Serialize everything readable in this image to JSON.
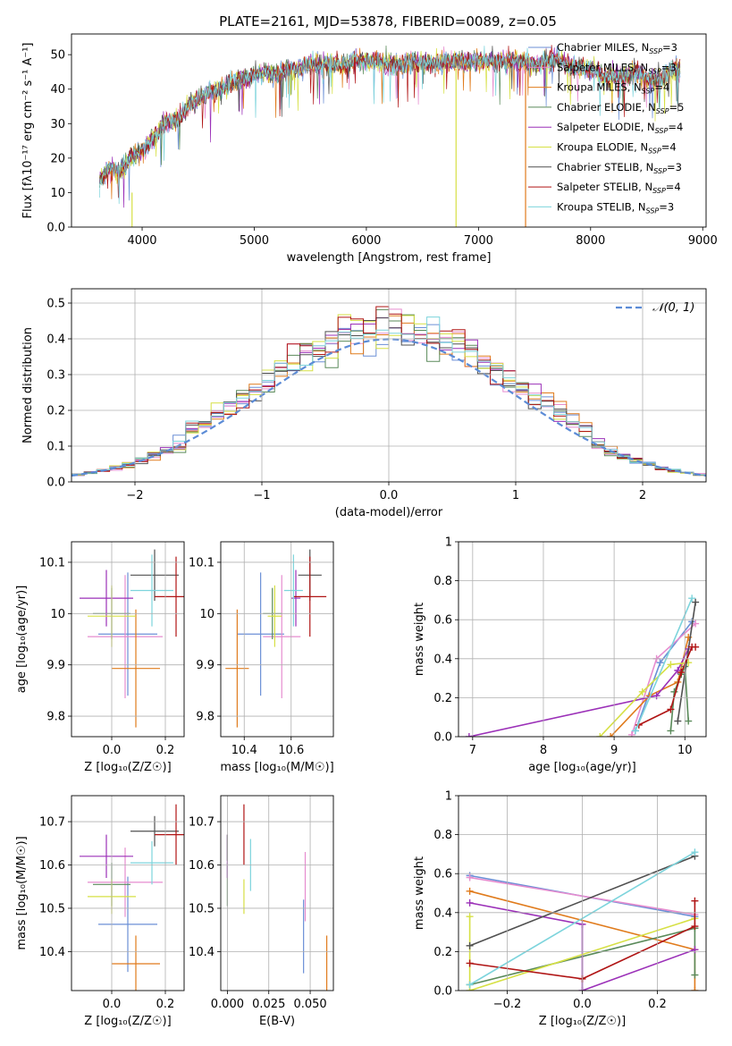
{
  "figure_title": "PLATE=2161, MJD=53878, FIBERID=0089, z=0.05",
  "colors": {
    "Chabrier MILES": "#6b8fd6",
    "Salpeter MILES": "#e68ccf",
    "Kroupa MILES": "#e07b1c",
    "Chabrier ELODIE": "#5a8a5a",
    "Salpeter ELODIE": "#9b30b8",
    "Kroupa ELODIE": "#d6e044",
    "Chabrier STELIB": "#505050",
    "Salpeter STELIB": "#b01515",
    "Kroupa STELIB": "#7dd4dc",
    "normal": "#5b8bd6"
  },
  "chart_data": [
    {
      "type": "line",
      "panel": "spectrum",
      "xlabel": "wavelength [Angstrom, rest frame]",
      "ylabel": "Flux [fλ10⁻¹⁷ erg cm⁻² s⁻¹ A⁻¹]",
      "xlim": [
        3370,
        9030
      ],
      "ylim": [
        0,
        56
      ],
      "xticks": [
        4000,
        5000,
        6000,
        7000,
        8000,
        9000
      ],
      "yticks": [
        0,
        10,
        20,
        30,
        40,
        50
      ],
      "grid": false,
      "legend_position": "top-right",
      "legend": [
        {
          "label": "Chabrier MILES, N",
          "sub": "SSP",
          "value": "=3"
        },
        {
          "label": "Salpeter MILES, N",
          "sub": "SSP",
          "value": "=3"
        },
        {
          "label": "Kroupa MILES, N",
          "sub": "SSP",
          "value": "=4"
        },
        {
          "label": "Chabrier ELODIE, N",
          "sub": "SSP",
          "value": "=5"
        },
        {
          "label": "Salpeter ELODIE, N",
          "sub": "SSP",
          "value": "=4"
        },
        {
          "label": "Kroupa ELODIE, N",
          "sub": "SSP",
          "value": "=4"
        },
        {
          "label": "Chabrier STELIB, N",
          "sub": "SSP",
          "value": "=3"
        },
        {
          "label": "Salpeter STELIB, N",
          "sub": "SSP",
          "value": "=4"
        },
        {
          "label": "Kroupa STELIB, N",
          "sub": "SSP",
          "value": "=3"
        }
      ],
      "x": [
        3620,
        3700,
        3800,
        3900,
        4000,
        4100,
        4200,
        4300,
        4400,
        4500,
        4600,
        4700,
        4800,
        4900,
        5000,
        5100,
        5200,
        5300,
        5400,
        5500,
        5600,
        5700,
        5800,
        5900,
        6000,
        6100,
        6200,
        6300,
        6400,
        6500,
        6600,
        6700,
        6800,
        6900,
        7000,
        7100,
        7200,
        7300,
        7400,
        7500,
        7600,
        7700,
        7800,
        7900,
        8000,
        8100,
        8200,
        8300,
        8400,
        8500,
        8600,
        8700,
        8800
      ],
      "y": [
        13,
        17,
        16,
        20,
        22,
        26,
        30,
        31,
        35,
        37,
        39,
        40,
        42,
        43,
        44,
        45,
        44,
        46,
        46,
        47,
        47,
        47,
        47,
        48,
        48,
        48,
        47,
        47,
        48,
        48,
        47,
        48,
        48,
        48,
        48,
        48,
        48,
        48,
        48,
        47,
        48,
        49,
        47,
        46,
        46,
        44,
        43,
        44,
        45,
        43,
        43,
        45,
        46
      ],
      "dropouts": [
        {
          "x": 3910,
          "y_low": 0,
          "y_high": 10
        },
        {
          "x": 6800,
          "y_low": 0,
          "y_high": 46
        },
        {
          "x": 7420,
          "y_low": 0,
          "y_high": 47
        }
      ]
    },
    {
      "type": "histogram",
      "panel": "residuals",
      "xlabel": "(data-model)/error",
      "ylabel": "Normed distribution",
      "xlim": [
        -2.5,
        2.5
      ],
      "ylim": [
        0,
        0.54
      ],
      "xticks": [
        -2,
        -1,
        0,
        1,
        2
      ],
      "yticks": [
        0,
        0.1,
        0.2,
        0.3,
        0.4,
        0.5
      ],
      "grid": true,
      "legend_position": "top-right",
      "legend": [
        {
          "label": "𝒩(0, 1)"
        }
      ],
      "bin_edges_start": -2.5,
      "bin_width": 0.1
    },
    {
      "type": "errorbar",
      "panel": "age-vs-Z",
      "xlabel": "Z [log₁₀(Z/Z☉)]",
      "ylabel": "age  [log₁₀(age/yr)]",
      "xlim": [
        -0.15,
        0.27
      ],
      "ylim": [
        9.76,
        10.14
      ],
      "xticks": [
        0.0,
        0.2
      ],
      "yticks": [
        9.8,
        9.9,
        10.0,
        10.1
      ],
      "grid": true,
      "points": [
        {
          "series": "Chabrier MILES",
          "x": 0.06,
          "xerr": 0.11,
          "y": 9.96,
          "yerr": 0.12
        },
        {
          "series": "Salpeter MILES",
          "x": 0.05,
          "xerr": 0.14,
          "y": 9.955,
          "yerr": 0.12
        },
        {
          "series": "Kroupa MILES",
          "x": 0.09,
          "xerr": 0.09,
          "y": 9.893,
          "yerr": 0.115
        },
        {
          "series": "Chabrier ELODIE",
          "x": 0.0,
          "xerr": 0.07,
          "y": 10.0,
          "yerr": 0.05
        },
        {
          "series": "Salpeter ELODIE",
          "x": -0.02,
          "xerr": 0.1,
          "y": 10.03,
          "yerr": 0.055
        },
        {
          "series": "Kroupa ELODIE",
          "x": 0.0,
          "xerr": 0.09,
          "y": 9.995,
          "yerr": 0.06
        },
        {
          "series": "Chabrier STELIB",
          "x": 0.16,
          "xerr": 0.09,
          "y": 10.075,
          "yerr": 0.05
        },
        {
          "series": "Salpeter STELIB",
          "x": 0.24,
          "xerr": 0.08,
          "y": 10.033,
          "yerr": 0.078
        },
        {
          "series": "Kroupa STELIB",
          "x": 0.15,
          "xerr": 0.08,
          "y": 10.045,
          "yerr": 0.07
        }
      ]
    },
    {
      "type": "errorbar",
      "panel": "age-vs-mass",
      "xlabel": "mass [log₁₀(M/M☉)]",
      "ylabel": "",
      "xlim": [
        10.3,
        10.78
      ],
      "ylim": [
        9.76,
        10.14
      ],
      "xticks": [
        10.4,
        10.6
      ],
      "yticks": [
        9.8,
        9.9,
        10.0,
        10.1
      ],
      "grid": true,
      "points": [
        {
          "series": "Chabrier MILES",
          "x": 10.47,
          "xerr": 0.1,
          "y": 9.96,
          "yerr": 0.12
        },
        {
          "series": "Salpeter MILES",
          "x": 10.56,
          "xerr": 0.08,
          "y": 9.955,
          "yerr": 0.12
        },
        {
          "series": "Kroupa MILES",
          "x": 10.37,
          "xerr": 0.05,
          "y": 9.893,
          "yerr": 0.115
        },
        {
          "series": "Chabrier ELODIE",
          "x": 10.52,
          "xerr": 0.04,
          "y": 10.0,
          "yerr": 0.05
        },
        {
          "series": "Salpeter ELODIE",
          "x": 10.62,
          "xerr": 0.02,
          "y": 10.03,
          "yerr": 0.055
        },
        {
          "series": "Kroupa ELODIE",
          "x": 10.53,
          "xerr": 0.03,
          "y": 9.995,
          "yerr": 0.06
        },
        {
          "series": "Chabrier STELIB",
          "x": 10.68,
          "xerr": 0.05,
          "y": 10.075,
          "yerr": 0.05
        },
        {
          "series": "Salpeter STELIB",
          "x": 10.68,
          "xerr": 0.07,
          "y": 10.033,
          "yerr": 0.078
        },
        {
          "series": "Kroupa STELIB",
          "x": 10.61,
          "xerr": 0.04,
          "y": 10.045,
          "yerr": 0.07
        }
      ]
    },
    {
      "type": "line",
      "panel": "mass-weight-vs-age",
      "xlabel": "age  [log₁₀(age/yr)]",
      "ylabel": "mass weight",
      "xlim": [
        6.8,
        10.3
      ],
      "ylim": [
        0,
        1.0
      ],
      "xticks": [
        7,
        8,
        9,
        10
      ],
      "yticks": [
        0.0,
        0.2,
        0.4,
        0.6,
        0.8,
        1.0
      ],
      "grid": true,
      "series": [
        {
          "name": "Chabrier MILES",
          "x": [
            9.3,
            9.65,
            10.1
          ],
          "y": [
            0.03,
            0.38,
            0.59
          ]
        },
        {
          "name": "Salpeter MILES",
          "x": [
            9.25,
            9.6,
            10.15
          ],
          "y": [
            0.01,
            0.4,
            0.58
          ]
        },
        {
          "name": "Kroupa MILES",
          "x": [
            8.95,
            9.5,
            9.9,
            10.05
          ],
          "y": [
            0.0,
            0.21,
            0.28,
            0.51
          ]
        },
        {
          "name": "Chabrier ELODIE",
          "x": [
            9.8,
            9.85,
            9.95,
            10.0,
            10.05
          ],
          "y": [
            0.03,
            0.23,
            0.32,
            0.36,
            0.08
          ]
        },
        {
          "name": "Salpeter ELODIE",
          "x": [
            6.95,
            9.6,
            9.9,
            10.05
          ],
          "y": [
            0.0,
            0.21,
            0.34,
            0.45
          ]
        },
        {
          "name": "Kroupa ELODIE",
          "x": [
            8.8,
            9.4,
            9.8,
            10.05
          ],
          "y": [
            0.0,
            0.23,
            0.37,
            0.38
          ]
        },
        {
          "name": "Chabrier STELIB",
          "x": [
            9.9,
            10.15
          ],
          "y": [
            0.08,
            0.69
          ]
        },
        {
          "name": "Salpeter STELIB",
          "x": [
            9.35,
            9.8,
            9.95,
            10.1,
            10.15
          ],
          "y": [
            0.06,
            0.14,
            0.33,
            0.46,
            0.46
          ]
        },
        {
          "name": "Kroupa STELIB",
          "x": [
            9.3,
            10.1
          ],
          "y": [
            0.03,
            0.71
          ]
        }
      ]
    },
    {
      "type": "errorbar",
      "panel": "mass-vs-Z",
      "xlabel": "Z [log₁₀(Z/Z☉)]",
      "ylabel": "mass [log₁₀(M/M☉)]",
      "xlim": [
        -0.15,
        0.27
      ],
      "ylim": [
        10.31,
        10.76
      ],
      "xticks": [
        0.0,
        0.2
      ],
      "yticks": [
        10.4,
        10.5,
        10.6,
        10.7
      ],
      "grid": true,
      "points": [
        {
          "series": "Chabrier MILES",
          "x": 0.06,
          "xerr": 0.11,
          "y": 10.463,
          "yerr": 0.11
        },
        {
          "series": "Salpeter MILES",
          "x": 0.05,
          "xerr": 0.14,
          "y": 10.56,
          "yerr": 0.08
        },
        {
          "series": "Kroupa MILES",
          "x": 0.09,
          "xerr": 0.09,
          "y": 10.372,
          "yerr": 0.065
        },
        {
          "series": "Chabrier ELODIE",
          "x": 0.0,
          "xerr": 0.07,
          "y": 10.555,
          "yerr": 0.05
        },
        {
          "series": "Salpeter ELODIE",
          "x": -0.02,
          "xerr": 0.1,
          "y": 10.62,
          "yerr": 0.05
        },
        {
          "series": "Kroupa ELODIE",
          "x": 0.0,
          "xerr": 0.09,
          "y": 10.527,
          "yerr": 0.04
        },
        {
          "series": "Chabrier STELIB",
          "x": 0.16,
          "xerr": 0.09,
          "y": 10.678,
          "yerr": 0.035
        },
        {
          "series": "Salpeter STELIB",
          "x": 0.24,
          "xerr": 0.08,
          "y": 10.67,
          "yerr": 0.07
        },
        {
          "series": "Kroupa STELIB",
          "x": 0.15,
          "xerr": 0.08,
          "y": 10.605,
          "yerr": 0.05
        }
      ]
    },
    {
      "type": "errorbar",
      "panel": "mass-vs-EBV",
      "xlabel": "E(B-V)",
      "ylabel": "",
      "xlim": [
        -0.004,
        0.064
      ],
      "ylim": [
        10.31,
        10.76
      ],
      "xticks": [
        0.0,
        0.025,
        0.05
      ],
      "tick_labels": [
        "0.000",
        "0.025",
        "0.050"
      ],
      "yticks": [
        10.4,
        10.5,
        10.6,
        10.7
      ],
      "grid": true,
      "points": [
        {
          "series": "Chabrier MILES",
          "x": 0.046,
          "y": 10.435,
          "yerr": 0.085
        },
        {
          "series": "Salpeter MILES",
          "x": 0.047,
          "y": 10.55,
          "yerr": 0.08
        },
        {
          "series": "Kroupa MILES",
          "x": 0.06,
          "y": 10.372,
          "yerr": 0.065
        },
        {
          "series": "Chabrier ELODIE",
          "x": 0.0,
          "y": 10.555,
          "yerr": 0.05
        },
        {
          "series": "Salpeter ELODIE",
          "x": 0.0,
          "y": 10.62,
          "yerr": 0.05
        },
        {
          "series": "Kroupa ELODIE",
          "x": 0.01,
          "y": 10.527,
          "yerr": 0.04
        },
        {
          "series": "Chabrier STELIB",
          "x": 0.0,
          "y": 10.64,
          "yerr": 0.03
        },
        {
          "series": "Salpeter STELIB",
          "x": 0.01,
          "y": 10.67,
          "yerr": 0.07
        },
        {
          "series": "Kroupa STELIB",
          "x": 0.014,
          "y": 10.6,
          "yerr": 0.06
        }
      ]
    },
    {
      "type": "line",
      "panel": "mass-weight-vs-Z",
      "xlabel": "Z [log₁₀(Z/Z☉)]",
      "ylabel": "mass weight",
      "xlim": [
        -0.33,
        0.33
      ],
      "ylim": [
        0,
        1.0
      ],
      "xticks": [
        -0.2,
        0.0,
        0.2
      ],
      "yticks": [
        0.0,
        0.2,
        0.4,
        0.6,
        0.8,
        1.0
      ],
      "grid": true,
      "series": [
        {
          "name": "Chabrier MILES",
          "x": [
            -0.3,
            0.3
          ],
          "y": [
            0.59,
            0.38
          ]
        },
        {
          "name": "Salpeter MILES",
          "x": [
            -0.3,
            0.3
          ],
          "y": [
            0.58,
            0.39
          ]
        },
        {
          "name": "Kroupa MILES",
          "x": [
            -0.3,
            0.3,
            0.3
          ],
          "y": [
            0.51,
            0.21,
            0.0
          ]
        },
        {
          "name": "Chabrier ELODIE",
          "x": [
            -0.3,
            0.3,
            0.3
          ],
          "y": [
            0.03,
            0.32,
            0.08
          ]
        },
        {
          "name": "Salpeter ELODIE",
          "x": [
            -0.3,
            0.0,
            0.0,
            0.3
          ],
          "y": [
            0.45,
            0.34,
            0.0,
            0.21
          ]
        },
        {
          "name": "Kroupa ELODIE",
          "x": [
            -0.3,
            -0.3,
            0.3
          ],
          "y": [
            0.38,
            0.0,
            0.37
          ]
        },
        {
          "name": "Chabrier STELIB",
          "x": [
            -0.3,
            0.3
          ],
          "y": [
            0.23,
            0.69
          ]
        },
        {
          "name": "Salpeter STELIB",
          "x": [
            -0.3,
            0.0,
            0.3,
            0.3
          ],
          "y": [
            0.14,
            0.06,
            0.33,
            0.46
          ]
        },
        {
          "name": "Kroupa STELIB",
          "x": [
            -0.3,
            0.3
          ],
          "y": [
            0.03,
            0.71
          ]
        }
      ]
    }
  ]
}
